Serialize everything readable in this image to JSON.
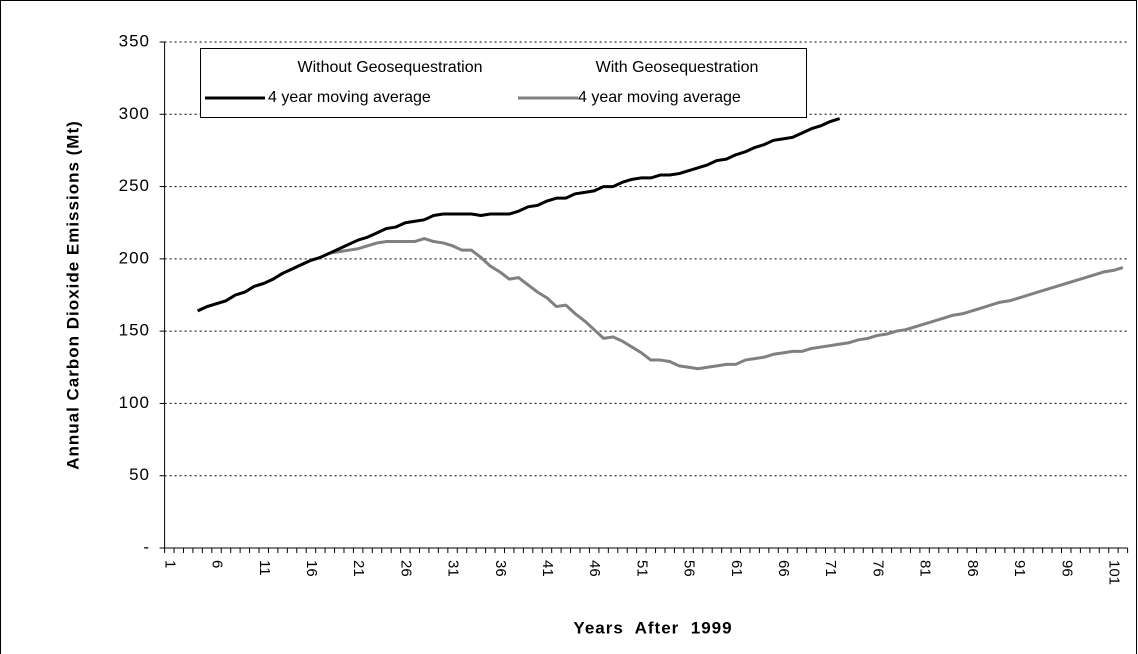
{
  "chart_data": {
    "type": "line",
    "y_label": "Annual Carbon Dioxide Emissions (Mt)",
    "x_label": "Years  After  1999",
    "legend_groups": [
      "Without Geosequestration",
      "With Geosequestration"
    ],
    "categories": [
      1,
      null,
      null,
      null,
      null,
      6,
      null,
      null,
      null,
      null,
      11,
      null,
      null,
      null,
      null,
      16,
      null,
      null,
      null,
      null,
      21,
      null,
      null,
      null,
      null,
      26,
      null,
      null,
      null,
      null,
      31,
      null,
      null,
      null,
      null,
      36,
      null,
      null,
      null,
      null,
      41,
      null,
      null,
      null,
      null,
      46,
      null,
      null,
      null,
      null,
      51,
      null,
      null,
      null,
      null,
      56,
      null,
      null,
      null,
      null,
      61,
      null,
      null,
      null,
      null,
      66,
      null,
      null,
      null,
      null,
      71,
      null,
      null,
      null,
      null,
      76,
      null,
      null,
      null,
      null,
      81,
      null,
      null,
      null,
      null,
      86,
      null,
      null,
      null,
      null,
      91,
      null,
      null,
      null,
      null,
      96,
      null,
      null,
      null,
      null,
      101,
      null
    ],
    "ylim": [
      0,
      350
    ],
    "yticks": [
      {
        "value": 0,
        "label": "-"
      },
      50,
      100,
      150,
      200,
      250,
      300,
      350
    ],
    "grid": true,
    "series": [
      {
        "name": "4 year moving average",
        "color": "#000000",
        "values": [
          null,
          null,
          null,
          164,
          167,
          169,
          171,
          175,
          177,
          181,
          183,
          186,
          190,
          193,
          196,
          199,
          201,
          204,
          207,
          210,
          213,
          215,
          218,
          221,
          222,
          225,
          226,
          227,
          230,
          231,
          231,
          231,
          231,
          230,
          231,
          231,
          231,
          233,
          236,
          237,
          240,
          242,
          242,
          245,
          246,
          247,
          250,
          250,
          253,
          255,
          256,
          256,
          258,
          258,
          259,
          261,
          263,
          265,
          268,
          269,
          272,
          274,
          277,
          279,
          282,
          283,
          284,
          287,
          290,
          292,
          295,
          297,
          null,
          null,
          null,
          null,
          null,
          null,
          null,
          null,
          null,
          null,
          null,
          null,
          null,
          null,
          null,
          null,
          null,
          null,
          null,
          null,
          null,
          null,
          null,
          null,
          null,
          null,
          null,
          null,
          null,
          null
        ]
      },
      {
        "name": "4 year moving average",
        "color": "#808080",
        "values": [
          null,
          null,
          null,
          164,
          167,
          169,
          171,
          175,
          177,
          181,
          183,
          186,
          190,
          193,
          196,
          199,
          201,
          204,
          205,
          206,
          207,
          209,
          211,
          212,
          212,
          212,
          212,
          214,
          212,
          211,
          209,
          206,
          206,
          201,
          195,
          191,
          186,
          187,
          182,
          177,
          173,
          167,
          168,
          162,
          157,
          151,
          145,
          146,
          143,
          139,
          135,
          130,
          130,
          129,
          126,
          125,
          124,
          125,
          126,
          127,
          127,
          130,
          131,
          132,
          134,
          135,
          136,
          136,
          138,
          139,
          140,
          141,
          142,
          144,
          145,
          147,
          148,
          150,
          151,
          153,
          155,
          157,
          159,
          161,
          162,
          164,
          166,
          168,
          170,
          171,
          173,
          175,
          177,
          179,
          181,
          183,
          185,
          187,
          189,
          191,
          192,
          194
        ]
      }
    ]
  }
}
